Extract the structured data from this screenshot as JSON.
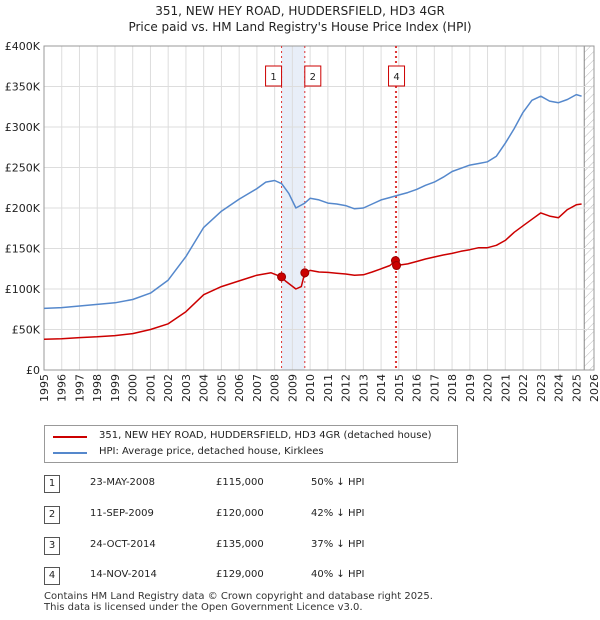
{
  "chart_data": {
    "type": "line",
    "title": "351, NEW HEY ROAD, HUDDERSFIELD, HD3 4GR",
    "subtitle": "Price paid vs. HM Land Registry's House Price Index (HPI)",
    "xlabel": "",
    "ylabel": "",
    "xlim": [
      1995,
      2026
    ],
    "ylim": [
      0,
      400000
    ],
    "x_ticks": [
      "1995",
      "1996",
      "1997",
      "1998",
      "1999",
      "2000",
      "2001",
      "2002",
      "2003",
      "2004",
      "2005",
      "2006",
      "2007",
      "2008",
      "2009",
      "2010",
      "2011",
      "2012",
      "2013",
      "2014",
      "2015",
      "2016",
      "2017",
      "2018",
      "2019",
      "2020",
      "2021",
      "2022",
      "2023",
      "2024",
      "2025",
      "2026"
    ],
    "y_ticks": [
      {
        "value": 0,
        "label": "£0"
      },
      {
        "value": 50000,
        "label": "£50K"
      },
      {
        "value": 100000,
        "label": "£100K"
      },
      {
        "value": 150000,
        "label": "£150K"
      },
      {
        "value": 200000,
        "label": "£200K"
      },
      {
        "value": 250000,
        "label": "£250K"
      },
      {
        "value": 300000,
        "label": "£300K"
      },
      {
        "value": 350000,
        "label": "£350K"
      },
      {
        "value": 400000,
        "label": "£400K"
      }
    ],
    "grid": true,
    "series": [
      {
        "name": "351, NEW HEY ROAD, HUDDERSFIELD, HD3 4GR (detached house)",
        "color": "#cc0000",
        "x": [
          1995,
          1996,
          1997,
          1998,
          1999,
          2000,
          2001,
          2002,
          2003,
          2004,
          2005,
          2006,
          2007,
          2007.8,
          2008.39,
          2008.6,
          2009.2,
          2009.5,
          2009.7,
          2010,
          2010.5,
          2011,
          2011.5,
          2012,
          2012.5,
          2013,
          2013.5,
          2014,
          2014.5,
          2014.81,
          2014.87,
          2015.5,
          2016,
          2016.5,
          2017,
          2017.5,
          2018,
          2018.5,
          2019,
          2019.5,
          2020,
          2020.5,
          2021,
          2021.5,
          2022,
          2022.5,
          2023,
          2023.5,
          2024,
          2024.5,
          2025,
          2025.3
        ],
        "y": [
          38000,
          38500,
          40000,
          41000,
          42500,
          45000,
          50000,
          57000,
          72000,
          93000,
          103000,
          110000,
          117000,
          120000,
          115000,
          110000,
          100000,
          103000,
          120000,
          123000,
          121000,
          120500,
          119500,
          118500,
          117000,
          117500,
          121000,
          125000,
          129000,
          135000,
          129000,
          131000,
          134000,
          137000,
          139500,
          142000,
          144000,
          146500,
          148500,
          151000,
          151000,
          154000,
          160000,
          170000,
          178000,
          186000,
          194000,
          190000,
          188000,
          198000,
          204000,
          205000
        ]
      },
      {
        "name": "HPI: Average price, detached house, Kirklees",
        "color": "#5588cc",
        "x": [
          1995,
          1996,
          1997,
          1998,
          1999,
          2000,
          2001,
          2002,
          2003,
          2004,
          2005,
          2006,
          2007,
          2007.5,
          2008,
          2008.4,
          2008.8,
          2009.2,
          2009.7,
          2010,
          2010.5,
          2011,
          2011.5,
          2012,
          2012.5,
          2013,
          2013.5,
          2014,
          2014.5,
          2015,
          2015.5,
          2016,
          2016.5,
          2017,
          2017.5,
          2018,
          2018.5,
          2019,
          2019.5,
          2020,
          2020.5,
          2021,
          2021.5,
          2022,
          2022.5,
          2023,
          2023.5,
          2024,
          2024.5,
          2025,
          2025.3
        ],
        "y": [
          76000,
          77000,
          79000,
          81000,
          83000,
          87000,
          95000,
          111000,
          140000,
          176000,
          196000,
          211000,
          224000,
          232000,
          234000,
          230000,
          218000,
          200000,
          206000,
          212000,
          210000,
          206000,
          205000,
          203000,
          199000,
          200000,
          205000,
          210000,
          213000,
          216000,
          219000,
          223000,
          228000,
          232000,
          238000,
          245000,
          249000,
          253000,
          255000,
          257000,
          264000,
          280000,
          298000,
          318000,
          333000,
          338000,
          332000,
          330000,
          334000,
          340000,
          338000
        ]
      }
    ],
    "markers": [
      {
        "label": "1",
        "x": 2008.39
      },
      {
        "label": "2",
        "x": 2009.7
      },
      {
        "label": "3",
        "x": 2014.81
      },
      {
        "label": "4",
        "x": 2014.87
      }
    ],
    "sale_points": [
      {
        "x": 2008.39,
        "y": 115000
      },
      {
        "x": 2009.7,
        "y": 120000
      },
      {
        "x": 2014.81,
        "y": 135000
      },
      {
        "x": 2014.87,
        "y": 129000
      }
    ]
  },
  "legend": {
    "property_label": "351, NEW HEY ROAD, HUDDERSFIELD, HD3 4GR (detached house)",
    "hpi_label": "HPI: Average price, detached house, Kirklees"
  },
  "transactions": [
    {
      "num": "1",
      "date": "23-MAY-2008",
      "price": "£115,000",
      "hpi": "50% ↓ HPI"
    },
    {
      "num": "2",
      "date": "11-SEP-2009",
      "price": "£120,000",
      "hpi": "42% ↓ HPI"
    },
    {
      "num": "3",
      "date": "24-OCT-2014",
      "price": "£135,000",
      "hpi": "37% ↓ HPI"
    },
    {
      "num": "4",
      "date": "14-NOV-2014",
      "price": "£129,000",
      "hpi": "40% ↓ HPI"
    }
  ],
  "footer": {
    "line1": "Contains HM Land Registry data © Crown copyright and database right 2025.",
    "line2": "This data is licensed under the Open Government Licence v3.0."
  },
  "colors": {
    "property": "#cc0000",
    "hpi": "#5588cc",
    "marker_line": "#dd3333",
    "future_hatch": "#bbbbbb",
    "highlight_band": "#e8eef8"
  }
}
